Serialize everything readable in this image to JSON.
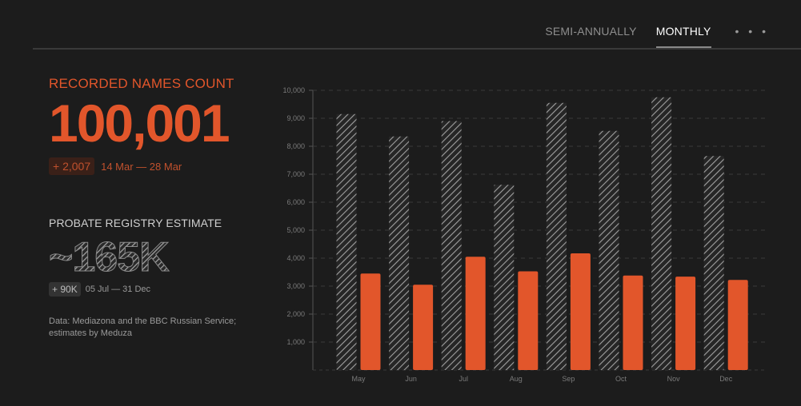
{
  "tabs": {
    "semi_annually": "SEMI-ANNUALLY",
    "monthly": "MONTHLY",
    "more": "• • •",
    "active": "monthly"
  },
  "summary": {
    "recorded_label": "RECORDED NAMES COUNT",
    "recorded_value": "100,001",
    "recorded_delta": "+ 2,007",
    "recorded_dates": "14 Mar — 28 Mar",
    "probate_label": "PROBATE REGISTRY ESTIMATE",
    "probate_value": "~165K",
    "probate_delta": "+ 90K",
    "probate_dates": "05 Jul — 31 Dec",
    "source": "Data: Mediazona and the BBC Russian Service; estimates by Meduza"
  },
  "colors": {
    "accent": "#e2562b",
    "hatch": "#9a9a9a",
    "background": "#1c1c1c"
  },
  "chart_data": {
    "type": "bar",
    "categories": [
      "May",
      "Jun",
      "Jul",
      "Aug",
      "Sep",
      "Oct",
      "Nov",
      "Dec"
    ],
    "series": [
      {
        "name": "",
        "pattern": "hatched",
        "values": [
          9150,
          8350,
          8900,
          6620,
          9550,
          8550,
          9750,
          7650
        ]
      },
      {
        "name": "",
        "pattern": "solid",
        "values": [
          3450,
          3050,
          4050,
          3530,
          4170,
          3380,
          3340,
          3220
        ]
      }
    ],
    "yticks": [
      "1,000",
      "2,000",
      "3,000",
      "4,000",
      "5,000",
      "6,000",
      "7,000",
      "8,000",
      "9,000",
      "10,000"
    ],
    "ylim": [
      0,
      10000
    ],
    "grid": true
  }
}
